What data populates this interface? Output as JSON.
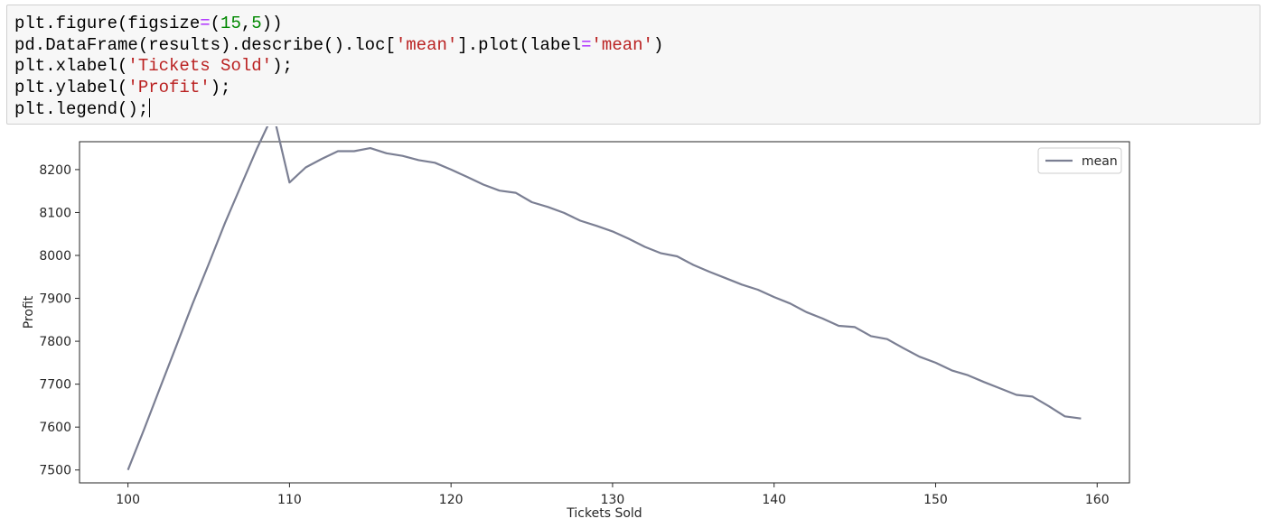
{
  "code_cell": {
    "lines": [
      [
        {
          "t": "plt.figure(figsize",
          "c": ""
        },
        {
          "t": "=",
          "c": "op"
        },
        {
          "t": "(",
          "c": ""
        },
        {
          "t": "15",
          "c": "num"
        },
        {
          "t": ",",
          "c": ""
        },
        {
          "t": "5",
          "c": "num"
        },
        {
          "t": "))",
          "c": ""
        }
      ],
      [
        {
          "t": "pd.DataFrame(results).describe().loc[",
          "c": ""
        },
        {
          "t": "'mean'",
          "c": "str"
        },
        {
          "t": "].plot(label",
          "c": ""
        },
        {
          "t": "=",
          "c": "op"
        },
        {
          "t": "'mean'",
          "c": "str"
        },
        {
          "t": ")",
          "c": ""
        }
      ],
      [
        {
          "t": "plt.xlabel(",
          "c": ""
        },
        {
          "t": "'Tickets Sold'",
          "c": "str"
        },
        {
          "t": ");",
          "c": ""
        }
      ],
      [
        {
          "t": "plt.ylabel(",
          "c": ""
        },
        {
          "t": "'Profit'",
          "c": "str"
        },
        {
          "t": ");",
          "c": ""
        }
      ],
      [
        {
          "t": "plt.legend();",
          "c": ""
        }
      ]
    ]
  },
  "chart_data": {
    "type": "line",
    "xlabel": "Tickets Sold",
    "ylabel": "Profit",
    "xlim": [
      97,
      162
    ],
    "ylim": [
      7470,
      8265
    ],
    "xticks": [
      100,
      110,
      120,
      130,
      140,
      150,
      160
    ],
    "yticks": [
      7500,
      7600,
      7700,
      7800,
      7900,
      8000,
      8100,
      8200
    ],
    "grid": false,
    "legend": {
      "placement": "top-right"
    },
    "series": [
      {
        "name": "mean",
        "color": "#7b7f93",
        "x": [
          100,
          101,
          102,
          103,
          104,
          105,
          106,
          107,
          108,
          109,
          110,
          111,
          112,
          113,
          114,
          115,
          116,
          117,
          118,
          119,
          120,
          121,
          122,
          123,
          124,
          125,
          126,
          127,
          128,
          129,
          130,
          131,
          132,
          133,
          134,
          135,
          136,
          137,
          138,
          139,
          140,
          141,
          142,
          143,
          144,
          145,
          146,
          147,
          148,
          149,
          150,
          151,
          152,
          153,
          154,
          155,
          156,
          157,
          158,
          159
        ],
        "y": [
          7500,
          7595,
          7693,
          7790,
          7887,
          7980,
          8075,
          8163,
          8250,
          8330,
          8170,
          8205,
          8225,
          8243,
          8243,
          8250,
          8238,
          8232,
          8222,
          8216,
          8200,
          8183,
          8165,
          8151,
          8146,
          8124,
          8113,
          8099,
          8081,
          8069,
          8056,
          8039,
          8020,
          8005,
          7998,
          7978,
          7962,
          7947,
          7932,
          7920,
          7903,
          7888,
          7868,
          7853,
          7836,
          7833,
          7812,
          7805,
          7784,
          7764,
          7750,
          7732,
          7721,
          7705,
          7690,
          7675,
          7671,
          7649,
          7625,
          7620
        ]
      }
    ]
  }
}
